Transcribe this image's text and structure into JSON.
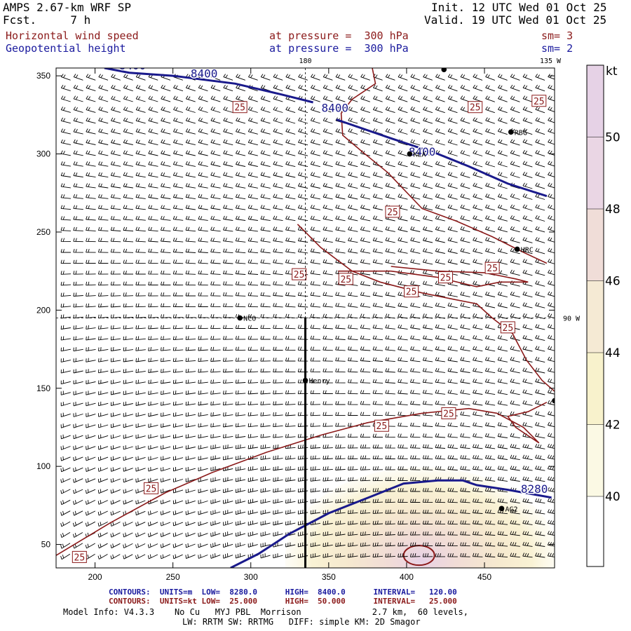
{
  "header": {
    "model": "AMPS 2.67-km WRF SP",
    "fcst_label": "Fcst.",
    "fcst_value": "7 h",
    "init": "Init. 12 UTC Wed 01 Oct 25",
    "valid": "Valid. 19 UTC Wed 01 Oct 25",
    "field1": "Horizontal wind speed",
    "field1_pressure": "at pressure =  300 hPa",
    "field1_sm": "sm= 3",
    "field2": "Geopotential height",
    "field2_pressure": "at pressure =  300 hPa",
    "field2_sm": "sm= 2"
  },
  "footer": {
    "row1": {
      "label": "CONTOURS:",
      "units": "UNITS=m",
      "low": "LOW=  8280.0",
      "high": "HIGH=  8400.0",
      "interval": "INTERVAL=   120.00"
    },
    "row2": {
      "label": "CONTOURS:",
      "units": "UNITS=kt",
      "low": "LOW=  25.000",
      "high": "HIGH=  50.000",
      "interval": "INTERVAL=   25.000"
    },
    "info1": "Model Info: V4.3.3    No Cu   MYJ PBL  Morrison              2.7 km,  60 levels,",
    "info2": "LW: RRTM SW: RRTMG   DIFF: simple KM: 2D Smagor"
  },
  "colors": {
    "height_contour": "#1a1a8c",
    "speed_contour": "#8b1a1a",
    "barb": "#000000",
    "shade_40": "#fbf9e4",
    "shade_42": "#f8f2cc",
    "shade_44": "#f5ead4",
    "shade_46": "#f0ddd8",
    "shade_48": "#ead6e4"
  },
  "chart_data": {
    "type": "contour",
    "title": "Horizontal wind speed / Geopotential height at 300 hPa",
    "x_range": [
      175,
      495
    ],
    "y_range": [
      35,
      355
    ],
    "x_ticks": [
      200,
      250,
      300,
      350,
      400,
      450
    ],
    "y_ticks": [
      50,
      100,
      150,
      200,
      250,
      300,
      350
    ],
    "meridian_labels": [
      "180",
      "135 W",
      "90 W"
    ],
    "height_contour_labels": [
      "8400",
      "8400",
      "8400",
      "8400",
      "8280"
    ],
    "height_contours_m": [
      {
        "level": 8400,
        "points": [
          [
            206,
            355
          ],
          [
            222,
            352
          ],
          [
            250,
            350
          ],
          [
            290,
            345
          ],
          [
            320,
            338
          ],
          [
            340,
            333
          ]
        ]
      },
      {
        "level": 8400,
        "points": [
          [
            355,
            322
          ],
          [
            390,
            310
          ],
          [
            420,
            300
          ],
          [
            440,
            292
          ],
          [
            465,
            281
          ],
          [
            490,
            273
          ]
        ]
      },
      {
        "level": 8280,
        "points": [
          [
            287,
            35
          ],
          [
            305,
            44
          ],
          [
            325,
            57
          ],
          [
            350,
            70
          ],
          [
            378,
            81
          ],
          [
            398,
            89
          ],
          [
            420,
            91
          ],
          [
            436,
            91
          ],
          [
            445,
            88
          ],
          [
            465,
            85
          ],
          [
            493,
            80
          ]
        ]
      }
    ],
    "speed_contour_label": "25",
    "speed_contours_kt": [
      {
        "level": 25,
        "points": [
          [
            175,
            43
          ],
          [
            210,
            64
          ],
          [
            245,
            83
          ],
          [
            275,
            96
          ],
          [
            310,
            109
          ],
          [
            345,
            120
          ],
          [
            375,
            128
          ],
          [
            410,
            134
          ],
          [
            440,
            137
          ],
          [
            458,
            134
          ],
          [
            475,
            125
          ],
          [
            485,
            115
          ],
          [
            470,
            125
          ],
          [
            465,
            132
          ],
          [
            478,
            135
          ],
          [
            490,
            141
          ]
        ]
      },
      {
        "level": 25,
        "points": [
          [
            378,
            355
          ],
          [
            380,
            345
          ],
          [
            365,
            335
          ],
          [
            358,
            326
          ],
          [
            359,
            312
          ],
          [
            372,
            301
          ],
          [
            388,
            288
          ],
          [
            410,
            265
          ],
          [
            432,
            257
          ],
          [
            455,
            247
          ],
          [
            475,
            237
          ],
          [
            490,
            230
          ]
        ]
      },
      {
        "level": 25,
        "points": [
          [
            330,
            255
          ],
          [
            345,
            240
          ],
          [
            365,
            225
          ],
          [
            383,
            218
          ],
          [
            410,
            211
          ],
          [
            430,
            207
          ],
          [
            445,
            204
          ],
          [
            455,
            195
          ],
          [
            468,
            185
          ],
          [
            477,
            168
          ],
          [
            487,
            155
          ],
          [
            495,
            148
          ]
        ]
      },
      {
        "level": 25,
        "points": [
          [
            356,
            225
          ],
          [
            390,
            225
          ],
          [
            420,
            221
          ],
          [
            445,
            215
          ],
          [
            460,
            218
          ],
          [
            478,
            218
          ],
          [
            470,
            220
          ],
          [
            450,
            224
          ],
          [
            420,
            225
          ],
          [
            390,
            228
          ]
        ]
      }
    ],
    "shaded_levels_kt": [
      40,
      42,
      44,
      46,
      48,
      50
    ],
    "colorbar_label": "kt",
    "wind_max_kt": 50,
    "stations": [
      {
        "name": "NCO",
        "x": 293,
        "y": 195
      },
      {
        "name": "Henry",
        "x": 335,
        "y": 155
      },
      {
        "name": "KLA",
        "x": 402,
        "y": 300
      },
      {
        "name": "RBG",
        "x": 467,
        "y": 314
      },
      {
        "name": "HRC",
        "x": 471,
        "y": 239
      },
      {
        "name": "AG2",
        "x": 461,
        "y": 73
      },
      {
        "name": "",
        "x": 424,
        "y": 354
      },
      {
        "name": "",
        "x": 495,
        "y": 142
      }
    ],
    "cross_section_line": {
      "x": 335,
      "y_start": 35,
      "y_end": 195
    },
    "meridian_180_x": 335,
    "parallel_90w_y": 195
  }
}
